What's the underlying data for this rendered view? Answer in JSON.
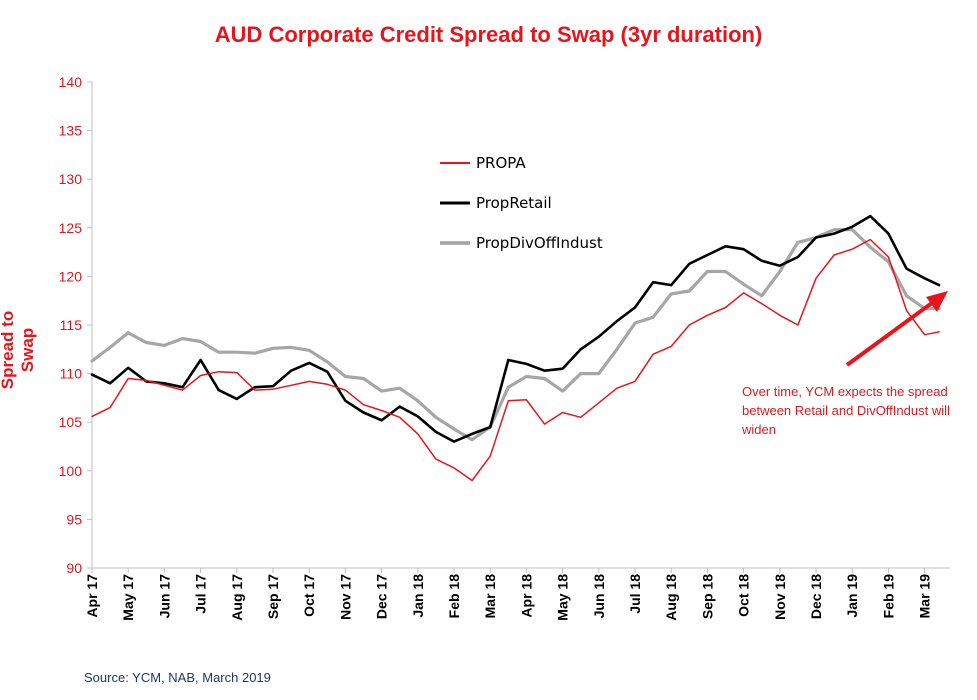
{
  "title": "AUD Corporate Credit Spread to Swap (3yr duration)",
  "source": "Source: YCM, NAB, March 2019",
  "annotation": "Over time, YCM expects the spread between Retail and DivOffIndust will widen",
  "colors": {
    "title": "#e8141b",
    "propa": "#e8141b",
    "propretail": "#000000",
    "propdivoffindust": "#a6a6a6",
    "source": "#1f3864"
  },
  "chart_data": {
    "type": "line",
    "ylabel": "Spread to Swap",
    "ylim": [
      90,
      140
    ],
    "yticks": [
      90,
      95,
      100,
      105,
      110,
      115,
      120,
      125,
      130,
      135,
      140
    ],
    "xticks": [
      "Apr 17",
      "May 17",
      "Jun 17",
      "Jul 17",
      "Aug 17",
      "Sep 17",
      "Oct 17",
      "Nov 17",
      "Dec 17",
      "Jan 18",
      "Feb 18",
      "Mar 18",
      "Apr 18",
      "May 18",
      "Jun 18",
      "Jul 18",
      "Aug 18",
      "Sep 18",
      "Oct 18",
      "Nov 18",
      "Dec 18",
      "Jan 19",
      "Feb 19",
      "Mar 19"
    ],
    "x_month_index": [
      0,
      0.5,
      1,
      1.5,
      2,
      2.5,
      3,
      3.5,
      4,
      4.5,
      5,
      5.5,
      6,
      6.5,
      7,
      7.5,
      8,
      8.5,
      9,
      9.5,
      10,
      10.5,
      11,
      11.5,
      12,
      12.5,
      13,
      13.5,
      14,
      14.5,
      15,
      15.5,
      16,
      16.5,
      17,
      17.5,
      18,
      18.5,
      19,
      19.5,
      20,
      20.5,
      21,
      21.5,
      22,
      22.5,
      23,
      23.4
    ],
    "series": [
      {
        "name": "PROPA",
        "values": [
          105.6,
          106.5,
          109.5,
          109.3,
          108.8,
          108.3,
          109.8,
          110.2,
          110.1,
          108.3,
          108.4,
          108.8,
          109.2,
          108.9,
          108.3,
          106.8,
          106.2,
          105.5,
          103.8,
          101.2,
          100.3,
          99.0,
          101.5,
          107.2,
          107.3,
          104.8,
          106.0,
          105.5,
          107.0,
          108.5,
          109.2,
          112.0,
          112.8,
          115.0,
          116.0,
          116.8,
          118.3,
          117.2,
          116.0,
          115.0,
          119.8,
          122.2,
          122.8,
          123.8,
          122.0,
          116.5,
          114.0,
          114.3
        ]
      },
      {
        "name": "PropRetail",
        "values": [
          109.9,
          109.0,
          110.6,
          109.2,
          109.0,
          108.6,
          111.4,
          108.3,
          107.4,
          108.6,
          108.7,
          110.3,
          111.1,
          110.2,
          107.2,
          106.0,
          105.2,
          106.6,
          105.6,
          104.0,
          103.0,
          103.8,
          104.5,
          111.4,
          111.0,
          110.3,
          110.5,
          112.5,
          113.8,
          115.4,
          116.8,
          119.4,
          119.1,
          121.3,
          122.2,
          123.1,
          122.8,
          121.6,
          121.1,
          122.0,
          124.0,
          124.4,
          125.1,
          126.2,
          124.4,
          120.8,
          119.8,
          119.1
        ]
      },
      {
        "name": "PropDivOffIndust",
        "values": [
          111.3,
          112.7,
          114.2,
          113.2,
          112.9,
          113.6,
          113.3,
          112.2,
          112.2,
          112.1,
          112.6,
          112.7,
          112.4,
          111.2,
          109.7,
          109.5,
          108.2,
          108.5,
          107.2,
          105.5,
          104.3,
          103.2,
          104.5,
          108.6,
          109.7,
          109.5,
          108.2,
          110.0,
          110.0,
          112.5,
          115.2,
          115.8,
          118.2,
          118.5,
          120.5,
          120.5,
          119.2,
          118.0,
          120.5,
          123.5,
          124.0,
          124.8,
          124.8,
          123.0,
          121.5,
          118.0,
          116.7,
          116.7
        ]
      }
    ],
    "legend": [
      "PROPA",
      "PropRetail",
      "PropDivOffIndust"
    ],
    "legend_position": "top-center",
    "grid": false
  }
}
